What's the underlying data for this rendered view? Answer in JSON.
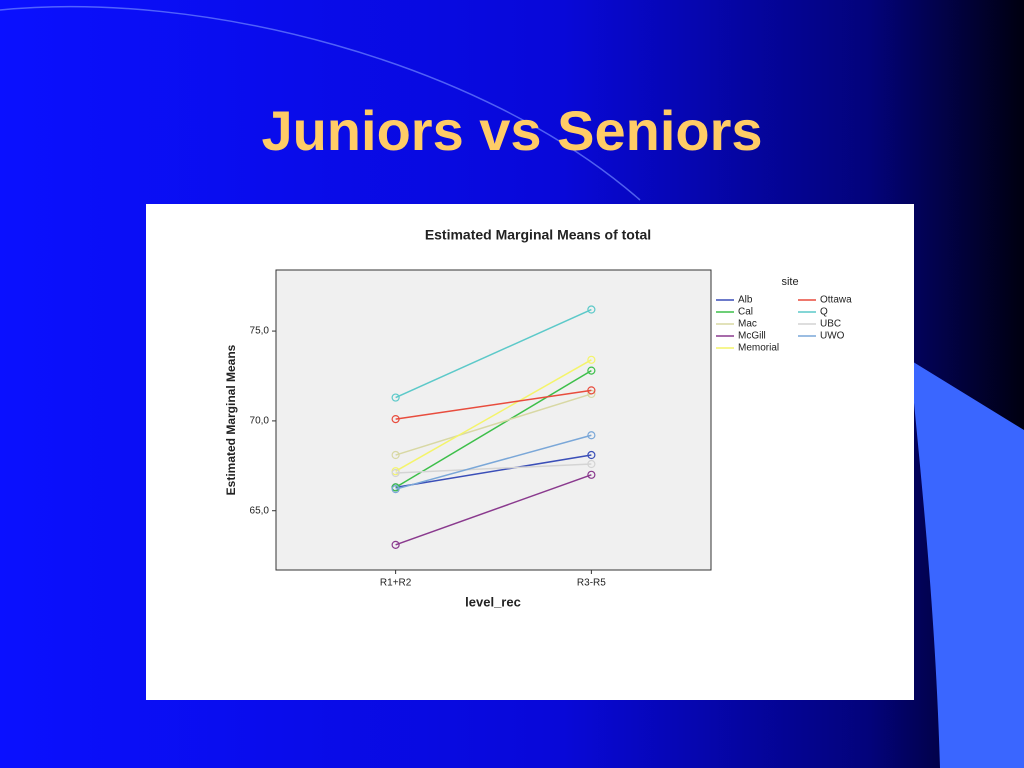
{
  "slide": {
    "title": "Juniors vs Seniors"
  },
  "chart_data": {
    "type": "line",
    "title": "Estimated Marginal Means of total",
    "x_label": "level_rec",
    "y_label": "Estimated Marginal Means",
    "legend_title": "site",
    "legend": "right",
    "categories": [
      "R1+R2",
      "R3-R5"
    ],
    "ylim": [
      61.7,
      78.4
    ],
    "yticks": [
      {
        "value": 65,
        "label": "65,0"
      },
      {
        "value": 70,
        "label": "70,0"
      },
      {
        "value": 75,
        "label": "75,0"
      }
    ],
    "series": [
      {
        "name": "Alb",
        "color": "#3b4fb8",
        "values": [
          66.3,
          68.1
        ]
      },
      {
        "name": "Cal",
        "color": "#3dbf4a",
        "values": [
          66.3,
          72.8
        ]
      },
      {
        "name": "Mac",
        "color": "#d8d8a4",
        "values": [
          68.1,
          71.5
        ]
      },
      {
        "name": "McGill",
        "color": "#8a3a8e",
        "values": [
          63.1,
          67.0
        ]
      },
      {
        "name": "Memorial",
        "color": "#f4f46a",
        "values": [
          67.2,
          73.4
        ]
      },
      {
        "name": "Ottawa",
        "color": "#e84c3d",
        "values": [
          70.1,
          71.7
        ]
      },
      {
        "name": "Q",
        "color": "#5cc9c9",
        "values": [
          71.3,
          76.2
        ]
      },
      {
        "name": "UBC",
        "color": "#d4d4d4",
        "values": [
          67.1,
          67.6
        ]
      },
      {
        "name": "UWO",
        "color": "#7aa7d8",
        "values": [
          66.2,
          69.2
        ]
      }
    ]
  }
}
